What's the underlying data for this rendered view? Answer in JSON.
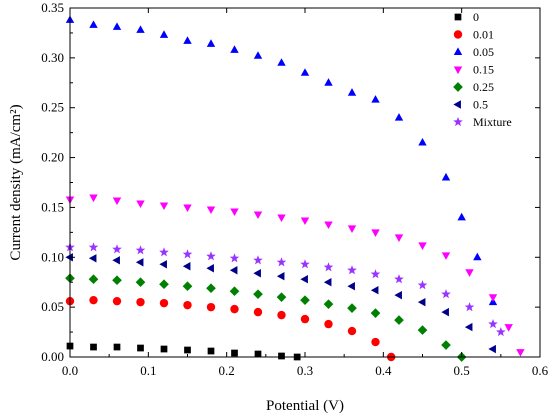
{
  "chart_data": {
    "type": "scatter",
    "xlabel": "Potential (V)",
    "ylabel": "Current density (mA/cm²)",
    "xlim": [
      0.0,
      0.6
    ],
    "ylim": [
      0.0,
      0.35
    ],
    "x_ticks": [
      "0.0",
      "0.1",
      "0.2",
      "0.3",
      "0.4",
      "0.5",
      "0.6"
    ],
    "y_ticks": [
      "0.00",
      "0.05",
      "0.10",
      "0.15",
      "0.20",
      "0.25",
      "0.30",
      "0.35"
    ],
    "grid": false,
    "legend_position": "top-right",
    "series": [
      {
        "name": "0",
        "marker": "square",
        "color": "#000000",
        "x": [
          0.0,
          0.03,
          0.06,
          0.09,
          0.12,
          0.15,
          0.18,
          0.21,
          0.24,
          0.27,
          0.29
        ],
        "y": [
          0.011,
          0.01,
          0.01,
          0.009,
          0.008,
          0.007,
          0.006,
          0.004,
          0.003,
          0.001,
          0.0
        ]
      },
      {
        "name": "0.01",
        "marker": "circle",
        "color": "#ff0000",
        "x": [
          0.0,
          0.03,
          0.06,
          0.09,
          0.12,
          0.15,
          0.18,
          0.21,
          0.24,
          0.27,
          0.3,
          0.33,
          0.36,
          0.39,
          0.41
        ],
        "y": [
          0.056,
          0.057,
          0.056,
          0.055,
          0.054,
          0.052,
          0.05,
          0.048,
          0.045,
          0.042,
          0.038,
          0.033,
          0.026,
          0.015,
          0.0
        ]
      },
      {
        "name": "0.05",
        "marker": "triangle-up",
        "color": "#0000ff",
        "x": [
          0.0,
          0.03,
          0.06,
          0.09,
          0.12,
          0.15,
          0.18,
          0.21,
          0.24,
          0.27,
          0.3,
          0.33,
          0.36,
          0.39,
          0.42,
          0.45,
          0.48,
          0.5,
          0.52,
          0.54
        ],
        "y": [
          0.338,
          0.333,
          0.331,
          0.328,
          0.323,
          0.317,
          0.314,
          0.308,
          0.302,
          0.295,
          0.285,
          0.275,
          0.265,
          0.258,
          0.24,
          0.215,
          0.18,
          0.14,
          0.1,
          0.055
        ]
      },
      {
        "name": "0.15",
        "marker": "triangle-down",
        "color": "#ff00ff",
        "x": [
          0.0,
          0.03,
          0.06,
          0.09,
          0.12,
          0.15,
          0.18,
          0.21,
          0.24,
          0.27,
          0.3,
          0.33,
          0.36,
          0.39,
          0.42,
          0.45,
          0.48,
          0.51,
          0.54,
          0.56,
          0.575
        ],
        "y": [
          0.158,
          0.16,
          0.157,
          0.154,
          0.152,
          0.15,
          0.148,
          0.146,
          0.143,
          0.14,
          0.137,
          0.133,
          0.129,
          0.125,
          0.12,
          0.112,
          0.102,
          0.085,
          0.06,
          0.03,
          0.005
        ]
      },
      {
        "name": "0.25",
        "marker": "diamond",
        "color": "#008000",
        "x": [
          0.0,
          0.03,
          0.06,
          0.09,
          0.12,
          0.15,
          0.18,
          0.21,
          0.24,
          0.27,
          0.3,
          0.33,
          0.36,
          0.39,
          0.42,
          0.45,
          0.48,
          0.5
        ],
        "y": [
          0.079,
          0.078,
          0.077,
          0.075,
          0.073,
          0.071,
          0.069,
          0.066,
          0.063,
          0.06,
          0.057,
          0.053,
          0.049,
          0.044,
          0.037,
          0.027,
          0.012,
          0.0
        ]
      },
      {
        "name": "0.5",
        "marker": "triangle-left",
        "color": "#00008b",
        "x": [
          0.0,
          0.03,
          0.06,
          0.09,
          0.12,
          0.15,
          0.18,
          0.21,
          0.24,
          0.27,
          0.3,
          0.33,
          0.36,
          0.39,
          0.42,
          0.45,
          0.48,
          0.51,
          0.54
        ],
        "y": [
          0.1,
          0.099,
          0.097,
          0.095,
          0.093,
          0.091,
          0.089,
          0.087,
          0.084,
          0.081,
          0.078,
          0.075,
          0.071,
          0.067,
          0.062,
          0.055,
          0.045,
          0.03,
          0.008
        ]
      },
      {
        "name": "Mixture",
        "marker": "star",
        "color": "#9933ff",
        "x": [
          0.0,
          0.03,
          0.06,
          0.09,
          0.12,
          0.15,
          0.18,
          0.21,
          0.24,
          0.27,
          0.3,
          0.33,
          0.36,
          0.39,
          0.42,
          0.45,
          0.48,
          0.51,
          0.54,
          0.55
        ],
        "y": [
          0.11,
          0.11,
          0.108,
          0.107,
          0.105,
          0.103,
          0.101,
          0.099,
          0.097,
          0.095,
          0.093,
          0.09,
          0.087,
          0.083,
          0.078,
          0.072,
          0.063,
          0.05,
          0.033,
          0.025
        ]
      }
    ]
  }
}
